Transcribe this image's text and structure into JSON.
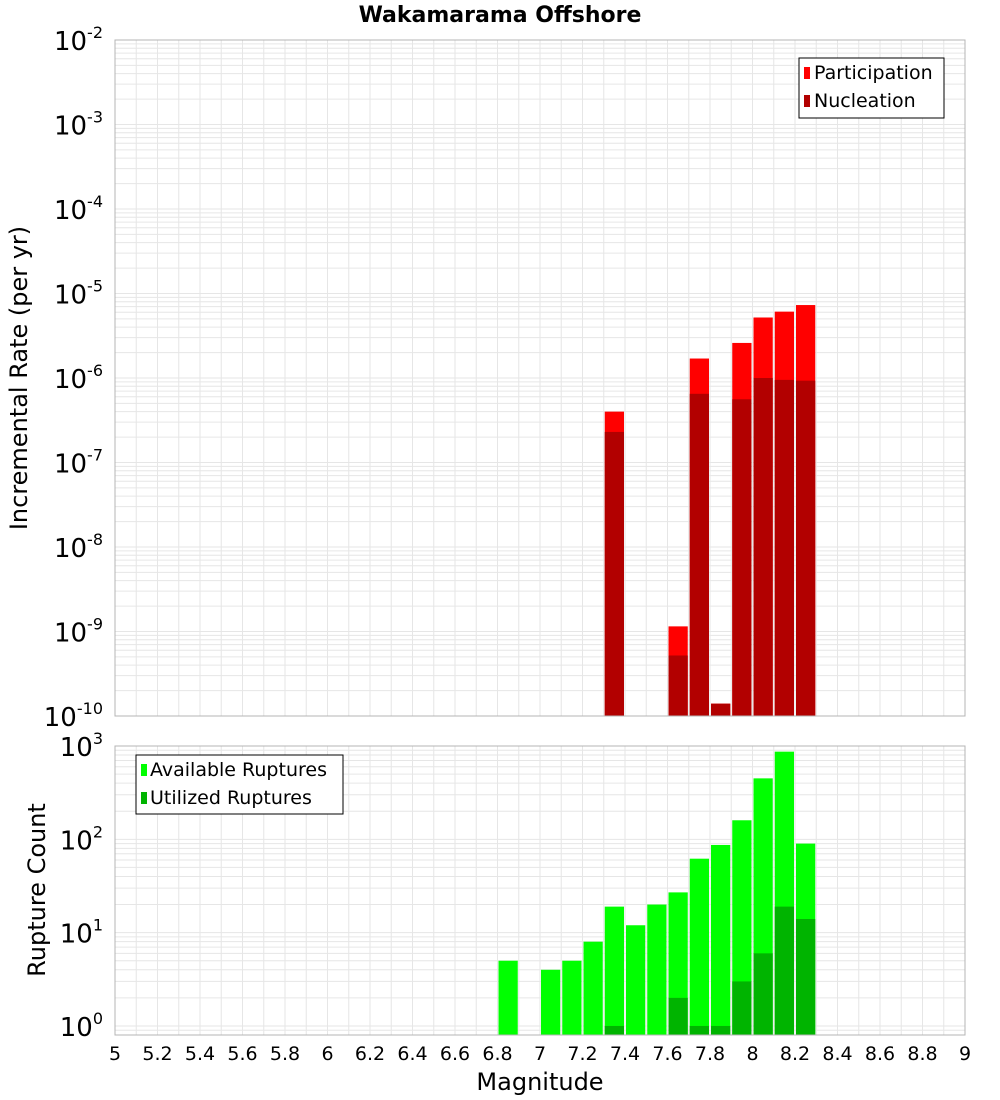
{
  "chart_data": [
    {
      "type": "bar",
      "title": "Wakamarama Offshore",
      "xlabel": "",
      "ylabel": "Incremental Rate (per yr)",
      "yscale": "log",
      "xlim": [
        5,
        9
      ],
      "ylim": [
        1e-10,
        0.01
      ],
      "y_tick_exponents": [
        -10,
        -9,
        -8,
        -7,
        -6,
        -5,
        -4,
        -3,
        -2
      ],
      "legend": {
        "placement": "top-right",
        "entries": [
          "Participation",
          "Nucleation"
        ]
      },
      "bin_width": 0.1,
      "series": [
        {
          "name": "Participation",
          "color": "#ff0000",
          "x": [
            7.35,
            7.65,
            7.75,
            7.85,
            7.95,
            8.05,
            8.15,
            8.25
          ],
          "values": [
            4e-07,
            1.15e-09,
            1.7e-06,
            1.4e-10,
            2.6e-06,
            5.2e-06,
            6.1e-06,
            7.3e-06
          ]
        },
        {
          "name": "Nucleation",
          "color": "#b20000",
          "x": [
            7.35,
            7.65,
            7.75,
            7.85,
            7.95,
            8.05,
            8.15,
            8.25
          ],
          "values": [
            2.3e-07,
            5.2e-10,
            6.5e-07,
            1.4e-10,
            5.6e-07,
            1e-06,
            9.5e-07,
            9.3e-07
          ]
        }
      ]
    },
    {
      "type": "bar",
      "title": "",
      "xlabel": "Magnitude",
      "ylabel": "Rupture Count",
      "yscale": "log",
      "xlim": [
        5,
        9
      ],
      "ylim": [
        0.8,
        1000
      ],
      "y_tick_exponents": [
        0,
        1,
        2,
        3
      ],
      "x_ticks": [
        "5",
        "5.2",
        "5.4",
        "5.6",
        "5.8",
        "6",
        "6.2",
        "6.4",
        "6.6",
        "6.8",
        "7",
        "7.2",
        "7.4",
        "7.6",
        "7.8",
        "8",
        "8.2",
        "8.4",
        "8.6",
        "8.8",
        "9"
      ],
      "legend": {
        "placement": "top-left",
        "entries": [
          "Available Ruptures",
          "Utilized Ruptures"
        ]
      },
      "bin_width": 0.1,
      "series": [
        {
          "name": "Available Ruptures",
          "color": "#00ff00",
          "x": [
            6.85,
            7.05,
            7.15,
            7.25,
            7.35,
            7.45,
            7.55,
            7.65,
            7.75,
            7.85,
            7.95,
            8.05,
            8.15,
            8.25
          ],
          "values": [
            5,
            4,
            5,
            8,
            19,
            12,
            20,
            27,
            62,
            87,
            160,
            450,
            870,
            90
          ]
        },
        {
          "name": "Utilized Ruptures",
          "color": "#00b400",
          "x": [
            7.35,
            7.65,
            7.75,
            7.85,
            7.95,
            8.05,
            8.15,
            8.25
          ],
          "values": [
            1,
            2,
            1,
            1,
            3,
            6,
            19,
            14
          ]
        }
      ]
    }
  ]
}
